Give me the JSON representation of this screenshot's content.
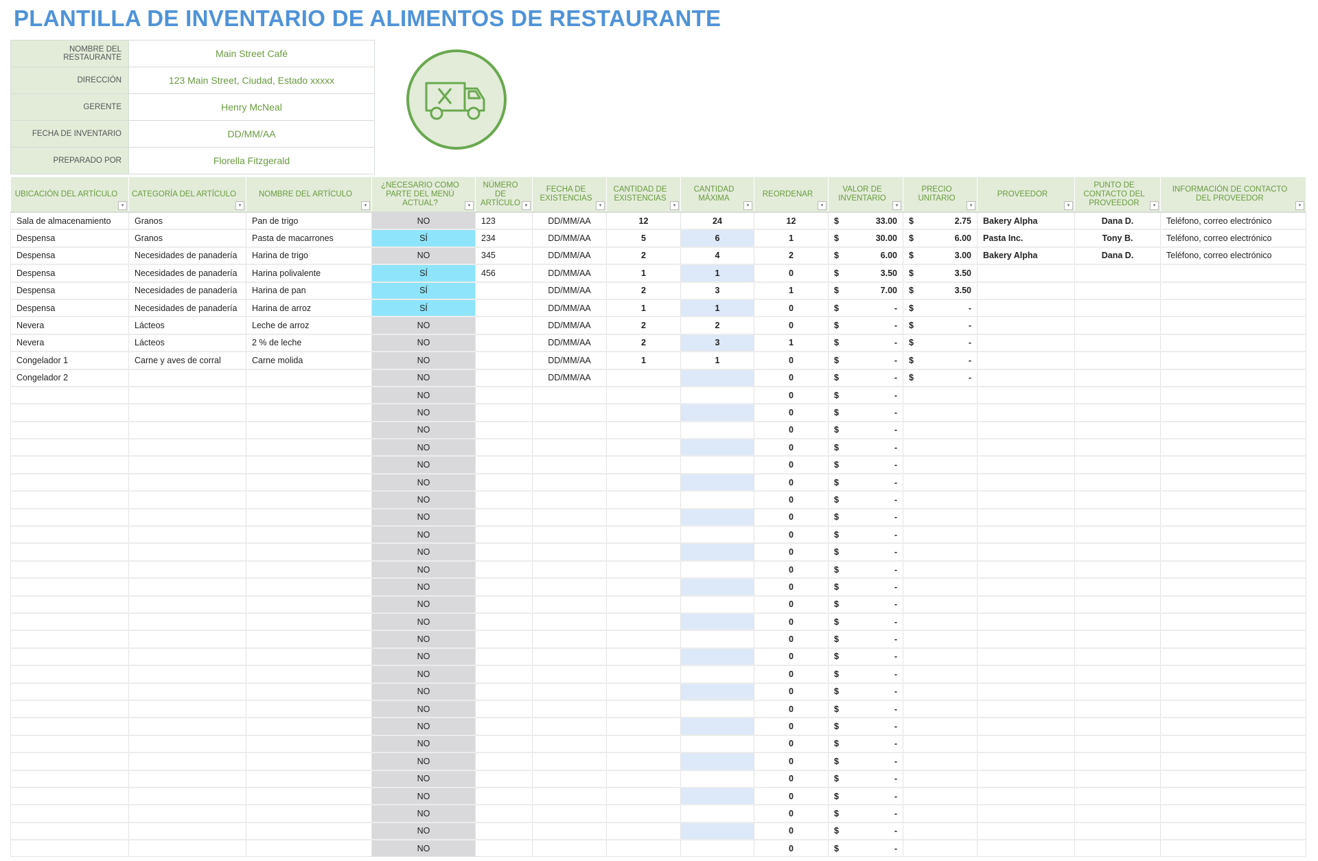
{
  "title": "PLANTILLA DE INVENTARIO DE ALIMENTOS DE RESTAURANTE",
  "info": [
    {
      "label": "NOMBRE DEL RESTAURANTE",
      "value": "Main Street Café"
    },
    {
      "label": "DIRECCIÓN",
      "value": "123 Main Street, Ciudad, Estado xxxxx"
    },
    {
      "label": "GERENTE",
      "value": "Henry McNeal"
    },
    {
      "label": "FECHA DE INVENTARIO",
      "value": "DD/MM/AA"
    },
    {
      "label": "PREPARADO POR",
      "value": "Florella Fitzgerald"
    }
  ],
  "logo_icon": "delivery-truck-utensils-icon",
  "colors": {
    "title": "#4f93d8",
    "header_bg": "#e2ecd9",
    "header_text": "#6a9a3f",
    "menu_no": "#d9d9db",
    "menu_yes": "#8ee4fb",
    "max_alt": "#dde9f8",
    "value_text": "#4d7a2a"
  },
  "table": {
    "headers": [
      "UBICACIÓN DEL ARTÍCULO",
      "CATEGORÍA DEL ARTÍCULO",
      "NOMBRE DEL ARTÍCULO",
      "¿NECESARIO COMO PARTE DEL MENÚ ACTUAL?",
      "NÚMERO DE ARTÍCULO",
      "FECHA DE EXISTENCIAS",
      "CANTIDAD DE EXISTENCIAS",
      "CANTIDAD MÁXIMA",
      "REORDENAR",
      "VALOR DE INVENTARIO",
      "PRECIO UNITARIO",
      "PROVEEDOR",
      "PUNTO DE CONTACTO DEL PROVEEDOR",
      "INFORMACIÓN DE CONTACTO DEL PROVEEDOR"
    ],
    "currency": "$",
    "rows": [
      [
        "Sala de almacenamiento",
        "Granos",
        "Pan de trigo",
        "NO",
        "123",
        "DD/MM/AA",
        "12",
        "24",
        "12",
        "33.00",
        "2.75",
        "Bakery Alpha",
        "Dana D.",
        "Teléfono, correo electrónico"
      ],
      [
        "Despensa",
        "Granos",
        "Pasta de macarrones",
        "SÍ",
        "234",
        "DD/MM/AA",
        "5",
        "6",
        "1",
        "30.00",
        "6.00",
        "Pasta Inc.",
        "Tony B.",
        "Teléfono, correo electrónico"
      ],
      [
        "Despensa",
        "Necesidades de panadería",
        "Harina de trigo",
        "NO",
        "345",
        "DD/MM/AA",
        "2",
        "4",
        "2",
        "6.00",
        "3.00",
        "Bakery Alpha",
        "Dana D.",
        "Teléfono, correo electrónico"
      ],
      [
        "Despensa",
        "Necesidades de panadería",
        "Harina polivalente",
        "SÍ",
        "456",
        "DD/MM/AA",
        "1",
        "1",
        "0",
        "3.50",
        "3.50",
        "",
        "",
        ""
      ],
      [
        "Despensa",
        "Necesidades de panadería",
        "Harina de pan",
        "SÍ",
        "",
        "DD/MM/AA",
        "2",
        "3",
        "1",
        "7.00",
        "3.50",
        "",
        "",
        ""
      ],
      [
        "Despensa",
        "Necesidades de panadería",
        "Harina de arroz",
        "SÍ",
        "",
        "DD/MM/AA",
        "1",
        "1",
        "0",
        "-",
        "-",
        "",
        "",
        ""
      ],
      [
        "Nevera",
        "Lácteos",
        "Leche de arroz",
        "NO",
        "",
        "DD/MM/AA",
        "2",
        "2",
        "0",
        "-",
        "-",
        "",
        "",
        ""
      ],
      [
        "Nevera",
        "Lácteos",
        "2 % de leche",
        "NO",
        "",
        "DD/MM/AA",
        "2",
        "3",
        "1",
        "-",
        "-",
        "",
        "",
        ""
      ],
      [
        "Congelador 1",
        "Carne y aves de corral",
        "Carne molida",
        "NO",
        "",
        "DD/MM/AA",
        "1",
        "1",
        "0",
        "-",
        "-",
        "",
        "",
        ""
      ],
      [
        "Congelador 2",
        "",
        "",
        "NO",
        "",
        "DD/MM/AA",
        "",
        "",
        "0",
        "-",
        "-",
        "",
        "",
        ""
      ],
      [
        "",
        "",
        "",
        "NO",
        "",
        "",
        "",
        "",
        "0",
        "-",
        "",
        "",
        "",
        ""
      ],
      [
        "",
        "",
        "",
        "NO",
        "",
        "",
        "",
        "",
        "0",
        "-",
        "",
        "",
        "",
        ""
      ],
      [
        "",
        "",
        "",
        "NO",
        "",
        "",
        "",
        "",
        "0",
        "-",
        "",
        "",
        "",
        ""
      ],
      [
        "",
        "",
        "",
        "NO",
        "",
        "",
        "",
        "",
        "0",
        "-",
        "",
        "",
        "",
        ""
      ],
      [
        "",
        "",
        "",
        "NO",
        "",
        "",
        "",
        "",
        "0",
        "-",
        "",
        "",
        "",
        ""
      ],
      [
        "",
        "",
        "",
        "NO",
        "",
        "",
        "",
        "",
        "0",
        "-",
        "",
        "",
        "",
        ""
      ],
      [
        "",
        "",
        "",
        "NO",
        "",
        "",
        "",
        "",
        "0",
        "-",
        "",
        "",
        "",
        ""
      ],
      [
        "",
        "",
        "",
        "NO",
        "",
        "",
        "",
        "",
        "0",
        "-",
        "",
        "",
        "",
        ""
      ],
      [
        "",
        "",
        "",
        "NO",
        "",
        "",
        "",
        "",
        "0",
        "-",
        "",
        "",
        "",
        ""
      ],
      [
        "",
        "",
        "",
        "NO",
        "",
        "",
        "",
        "",
        "0",
        "-",
        "",
        "",
        "",
        ""
      ],
      [
        "",
        "",
        "",
        "NO",
        "",
        "",
        "",
        "",
        "0",
        "-",
        "",
        "",
        "",
        ""
      ],
      [
        "",
        "",
        "",
        "NO",
        "",
        "",
        "",
        "",
        "0",
        "-",
        "",
        "",
        "",
        ""
      ],
      [
        "",
        "",
        "",
        "NO",
        "",
        "",
        "",
        "",
        "0",
        "-",
        "",
        "",
        "",
        ""
      ],
      [
        "",
        "",
        "",
        "NO",
        "",
        "",
        "",
        "",
        "0",
        "-",
        "",
        "",
        "",
        ""
      ],
      [
        "",
        "",
        "",
        "NO",
        "",
        "",
        "",
        "",
        "0",
        "-",
        "",
        "",
        "",
        ""
      ],
      [
        "",
        "",
        "",
        "NO",
        "",
        "",
        "",
        "",
        "0",
        "-",
        "",
        "",
        "",
        ""
      ],
      [
        "",
        "",
        "",
        "NO",
        "",
        "",
        "",
        "",
        "0",
        "-",
        "",
        "",
        "",
        ""
      ],
      [
        "",
        "",
        "",
        "NO",
        "",
        "",
        "",
        "",
        "0",
        "-",
        "",
        "",
        "",
        ""
      ],
      [
        "",
        "",
        "",
        "NO",
        "",
        "",
        "",
        "",
        "0",
        "-",
        "",
        "",
        "",
        ""
      ],
      [
        "",
        "",
        "",
        "NO",
        "",
        "",
        "",
        "",
        "0",
        "-",
        "",
        "",
        "",
        ""
      ],
      [
        "",
        "",
        "",
        "NO",
        "",
        "",
        "",
        "",
        "0",
        "-",
        "",
        "",
        "",
        ""
      ],
      [
        "",
        "",
        "",
        "NO",
        "",
        "",
        "",
        "",
        "0",
        "-",
        "",
        "",
        "",
        ""
      ],
      [
        "",
        "",
        "",
        "NO",
        "",
        "",
        "",
        "",
        "0",
        "-",
        "",
        "",
        "",
        ""
      ],
      [
        "",
        "",
        "",
        "NO",
        "",
        "",
        "",
        "",
        "0",
        "-",
        "",
        "",
        "",
        ""
      ],
      [
        "",
        "",
        "",
        "NO",
        "",
        "",
        "",
        "",
        "0",
        "-",
        "",
        "",
        "",
        ""
      ],
      [
        "",
        "",
        "",
        "NO",
        "",
        "",
        "",
        "",
        "0",
        "-",
        "",
        "",
        "",
        ""
      ],
      [
        "",
        "",
        "",
        "NO",
        "",
        "",
        "",
        "",
        "0",
        "-",
        "",
        "",
        "",
        ""
      ]
    ]
  }
}
